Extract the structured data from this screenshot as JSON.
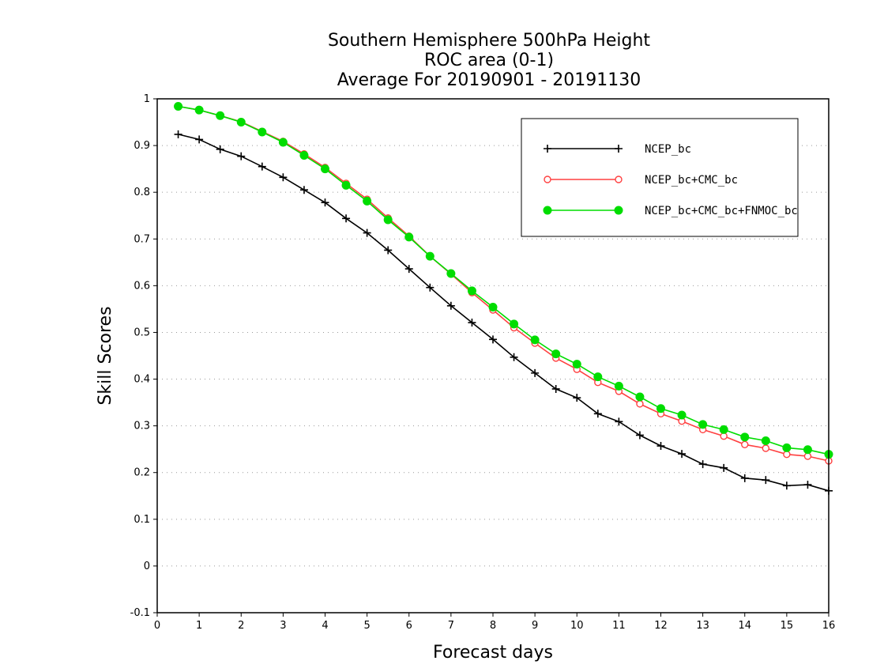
{
  "chart_data": {
    "type": "line",
    "title": [
      "Southern Hemisphere 500hPa Height",
      "ROC area (0-1)",
      "Average For 20190901 - 20191130"
    ],
    "xlabel": "Forecast days",
    "ylabel": "Skill Scores",
    "xlim": [
      0,
      16
    ],
    "ylim": [
      -0.1,
      1
    ],
    "xticks": [
      "0",
      "1",
      "2",
      "3",
      "4",
      "5",
      "6",
      "7",
      "8",
      "9",
      "10",
      "11",
      "12",
      "13",
      "14",
      "15",
      "16"
    ],
    "yticks": [
      "-0.1",
      "0",
      "0.1",
      "0.2",
      "0.3",
      "0.4",
      "0.5",
      "0.6",
      "0.7",
      "0.8",
      "0.9",
      "1"
    ],
    "grid": true,
    "legend_position": "top-right",
    "x": [
      0.5,
      1,
      1.5,
      2,
      2.5,
      3,
      3.5,
      4,
      4.5,
      5,
      5.5,
      6,
      6.5,
      7,
      7.5,
      8,
      8.5,
      9,
      9.5,
      10,
      10.5,
      11,
      11.5,
      12,
      12.5,
      13,
      13.5,
      14,
      14.5,
      15,
      15.5,
      16
    ],
    "series": [
      {
        "name": "NCEP_bc",
        "color": "#000000",
        "marker": "plus",
        "values": [
          0.924,
          0.913,
          0.892,
          0.877,
          0.855,
          0.832,
          0.805,
          0.778,
          0.744,
          0.713,
          0.676,
          0.636,
          0.596,
          0.557,
          0.521,
          0.485,
          0.447,
          0.413,
          0.379,
          0.36,
          0.326,
          0.309,
          0.28,
          0.257,
          0.24,
          0.218,
          0.21,
          0.188,
          0.184,
          0.172,
          0.174,
          0.161
        ]
      },
      {
        "name": "NCEP_bc+CMC_bc",
        "color": "#ff4040",
        "marker": "open-circle",
        "values": [
          0.984,
          0.976,
          0.964,
          0.951,
          0.93,
          0.909,
          0.882,
          0.853,
          0.819,
          0.785,
          0.745,
          0.706,
          0.663,
          0.625,
          0.585,
          0.548,
          0.51,
          0.477,
          0.445,
          0.421,
          0.393,
          0.374,
          0.347,
          0.326,
          0.31,
          0.292,
          0.278,
          0.26,
          0.252,
          0.239,
          0.235,
          0.225
        ]
      },
      {
        "name": "NCEP_bc+CMC_bc+FNMOC_bc",
        "color": "#00dd00",
        "marker": "filled-circle",
        "values": [
          0.984,
          0.976,
          0.964,
          0.95,
          0.929,
          0.907,
          0.879,
          0.85,
          0.815,
          0.781,
          0.741,
          0.704,
          0.663,
          0.626,
          0.589,
          0.554,
          0.518,
          0.484,
          0.454,
          0.432,
          0.405,
          0.385,
          0.362,
          0.337,
          0.323,
          0.303,
          0.292,
          0.276,
          0.268,
          0.253,
          0.249,
          0.239
        ]
      }
    ]
  }
}
